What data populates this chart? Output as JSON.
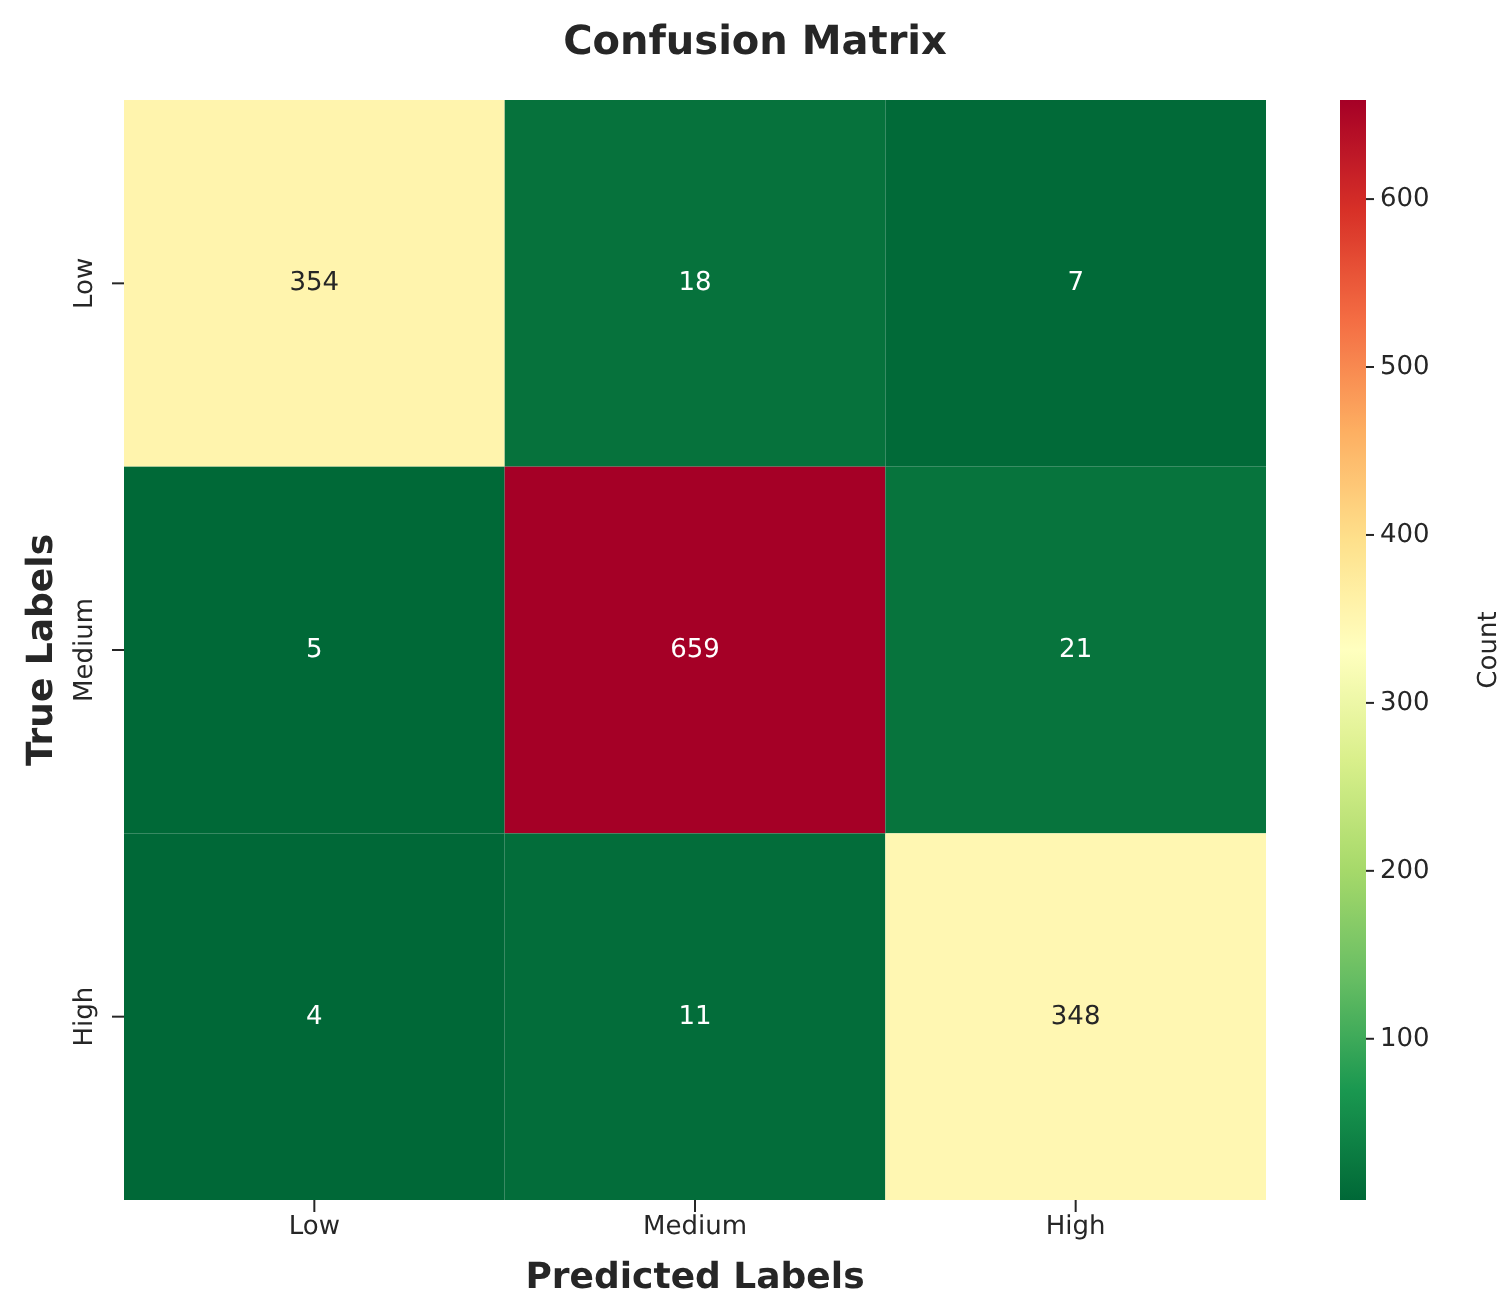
{
  "chart_data": {
    "type": "heatmap",
    "title": "Confusion Matrix",
    "xlabel": "Predicted Labels",
    "ylabel": "True Labels",
    "clabel": "Count",
    "categories": [
      "Low",
      "Medium",
      "High"
    ],
    "y_categories": [
      "Low",
      "Medium",
      "High"
    ],
    "cells": [
      [
        354,
        18,
        7
      ],
      [
        5,
        659,
        21
      ],
      [
        4,
        11,
        348
      ]
    ],
    "clim": [
      4,
      659
    ],
    "cticks": [
      100,
      200,
      300,
      400,
      500,
      600
    ],
    "data_labels": true
  }
}
